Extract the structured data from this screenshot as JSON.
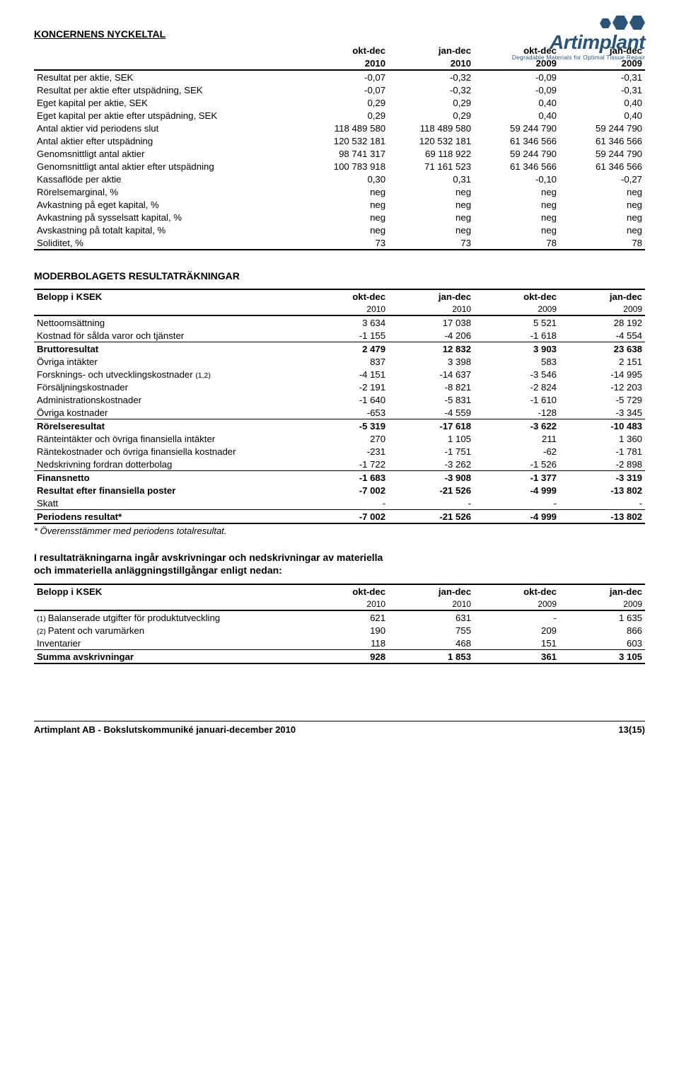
{
  "logo": {
    "name": "Artimplant",
    "tagline": "Degradable Materials for Optimal Tissue Repair"
  },
  "t1": {
    "title": "KONCERNENS NYCKELTAL",
    "cols": [
      "okt-dec",
      "jan-dec",
      "okt-dec",
      "jan-dec"
    ],
    "years": [
      "2010",
      "2010",
      "2009",
      "2009"
    ],
    "rows": [
      {
        "l": "Resultat per aktie, SEK",
        "v": [
          "-0,07",
          "-0,32",
          "-0,09",
          "-0,31"
        ]
      },
      {
        "l": "Resultat per aktie efter utspädning, SEK",
        "v": [
          "-0,07",
          "-0,32",
          "-0,09",
          "-0,31"
        ]
      },
      {
        "l": "Eget kapital per aktie, SEK",
        "v": [
          "0,29",
          "0,29",
          "0,40",
          "0,40"
        ]
      },
      {
        "l": "Eget kapital per aktie efter utspädning, SEK",
        "v": [
          "0,29",
          "0,29",
          "0,40",
          "0,40"
        ]
      },
      {
        "l": "Antal aktier vid periodens slut",
        "v": [
          "118 489 580",
          "118 489 580",
          "59 244 790",
          "59 244 790"
        ]
      },
      {
        "l": "Antal aktier efter utspädning",
        "v": [
          "120 532 181",
          "120 532 181",
          "61 346 566",
          "61 346 566"
        ]
      },
      {
        "l": "Genomsnittligt antal aktier",
        "v": [
          "98 741 317",
          "69 118 922",
          "59 244 790",
          "59 244 790"
        ]
      },
      {
        "l": "Genomsnittligt antal aktier efter utspädning",
        "v": [
          "100 783 918",
          "71 161 523",
          "61 346 566",
          "61 346 566"
        ]
      },
      {
        "l": "Kassaflöde per aktie",
        "v": [
          "0,30",
          "0,31",
          "-0,10",
          "-0,27"
        ]
      },
      {
        "l": "Rörelsemarginal, %",
        "v": [
          "neg",
          "neg",
          "neg",
          "neg"
        ]
      },
      {
        "l": "Avkastning på eget kapital, %",
        "v": [
          "neg",
          "neg",
          "neg",
          "neg"
        ]
      },
      {
        "l": "Avkastning på sysselsatt kapital, %",
        "v": [
          "neg",
          "neg",
          "neg",
          "neg"
        ]
      },
      {
        "l": "Avskastning på totalt kapital, %",
        "v": [
          "neg",
          "neg",
          "neg",
          "neg"
        ]
      },
      {
        "l": "Soliditet, %",
        "v": [
          "73",
          "73",
          "78",
          "78"
        ]
      }
    ]
  },
  "t2": {
    "title": "MODERBOLAGETS RESULTATRÄKNINGAR",
    "belopp": "Belopp i KSEK",
    "cols": [
      "okt-dec",
      "jan-dec",
      "okt-dec",
      "jan-dec"
    ],
    "years": [
      "2010",
      "2010",
      "2009",
      "2009"
    ],
    "rows": [
      {
        "l": "Nettoomsättning",
        "v": [
          "3 634",
          "17 038",
          "5 521",
          "28 192"
        ],
        "b": false,
        "tt": "thick"
      },
      {
        "l": "Kostnad för sålda varor och tjänster",
        "v": [
          "-1 155",
          "-4 206",
          "-1 618",
          "-4 554"
        ],
        "b": false
      },
      {
        "l": "Bruttoresultat",
        "v": [
          "2 479",
          "12 832",
          "3 903",
          "23 638"
        ],
        "b": true,
        "tt": "thin"
      },
      {
        "l": "Övriga intäkter",
        "v": [
          "837",
          "3 398",
          "583",
          "2 151"
        ],
        "b": false
      },
      {
        "l": "Forsknings- och utvecklingskostnader",
        "suf": "(1,2)",
        "v": [
          "-4 151",
          "-14 637",
          "-3 546",
          "-14 995"
        ],
        "b": false
      },
      {
        "l": "Försäljningskostnader",
        "v": [
          "-2 191",
          "-8 821",
          "-2 824",
          "-12 203"
        ],
        "b": false
      },
      {
        "l": "Administrationskostnader",
        "v": [
          "-1 640",
          "-5 831",
          "-1 610",
          "-5 729"
        ],
        "b": false
      },
      {
        "l": "Övriga kostnader",
        "v": [
          "-653",
          "-4 559",
          "-128",
          "-3 345"
        ],
        "b": false
      },
      {
        "l": "Rörelseresultat",
        "v": [
          "-5 319",
          "-17 618",
          "-3 622",
          "-10 483"
        ],
        "b": true,
        "tt": "thin"
      },
      {
        "l": "Ränteintäkter och övriga finansiella intäkter",
        "v": [
          "270",
          "1 105",
          "211",
          "1 360"
        ],
        "b": false
      },
      {
        "l": "Räntekostnader och övriga finansiella kostnader",
        "v": [
          "-231",
          "-1 751",
          "-62",
          "-1 781"
        ],
        "b": false
      },
      {
        "l": "Nedskrivning fordran dotterbolag",
        "v": [
          "-1 722",
          "-3 262",
          "-1 526",
          "-2 898"
        ],
        "b": false
      },
      {
        "l": "Finansnetto",
        "v": [
          "-1 683",
          "-3 908",
          "-1 377",
          "-3 319"
        ],
        "b": true,
        "tt": "thin"
      },
      {
        "l": "Resultat efter finansiella poster",
        "v": [
          "-7 002",
          "-21 526",
          "-4 999",
          "-13 802"
        ],
        "b": true
      },
      {
        "l": "Skatt",
        "v": [
          "-",
          "-",
          "-",
          "-"
        ],
        "b": false
      },
      {
        "l": "Periodens resultat*",
        "v": [
          "-7 002",
          "-21 526",
          "-4 999",
          "-13 802"
        ],
        "b": true,
        "tt": "thin",
        "tb": "thick"
      }
    ],
    "footnote": "* Överensstämmer med periodens totalresultat."
  },
  "note_para": {
    "l1": "I resultaträkningarna ingår avskrivningar och nedskrivningar av materiella",
    "l2": "och immateriella anläggningstillgångar enligt nedan:"
  },
  "t3": {
    "belopp": "Belopp i KSEK",
    "cols": [
      "okt-dec",
      "jan-dec",
      "okt-dec",
      "jan-dec"
    ],
    "years": [
      "2010",
      "2010",
      "2009",
      "2009"
    ],
    "rows": [
      {
        "pre": "(1) ",
        "l": "Balanserade utgifter för produktutveckling",
        "v": [
          "621",
          "631",
          "-",
          "1 635"
        ],
        "b": false,
        "tt": "thick"
      },
      {
        "pre": "(2) ",
        "l": "Patent och varumärken",
        "v": [
          "190",
          "755",
          "209",
          "866"
        ],
        "b": false
      },
      {
        "l": "Inventarier",
        "v": [
          "118",
          "468",
          "151",
          "603"
        ],
        "b": false
      },
      {
        "l": "Summa avskrivningar",
        "v": [
          "928",
          "1 853",
          "361",
          "3 105"
        ],
        "b": true,
        "tt": "thin",
        "tb": "thick"
      }
    ]
  },
  "footer": {
    "left": "Artimplant AB - Bokslutskommuniké januari-december 2010",
    "right": "13(15)"
  }
}
